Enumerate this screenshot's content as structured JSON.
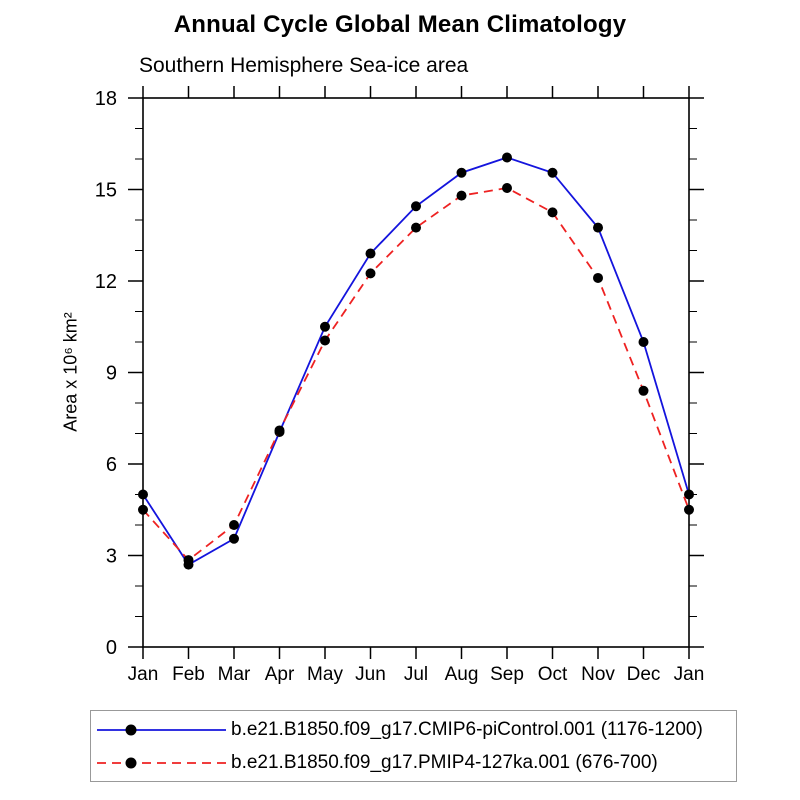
{
  "chart_data": {
    "type": "line",
    "title": "Annual Cycle Global Mean Climatology",
    "subtitle": "Southern Hemisphere Sea-ice area",
    "xlabel": "",
    "ylabel": "Area x 10⁶ km²",
    "categories": [
      "Jan",
      "Feb",
      "Mar",
      "Apr",
      "May",
      "Jun",
      "Jul",
      "Aug",
      "Sep",
      "Oct",
      "Nov",
      "Dec",
      "Jan"
    ],
    "ylim": [
      0,
      18
    ],
    "yticks": [
      0,
      3,
      6,
      9,
      12,
      15,
      18
    ],
    "y_minor_step": 1,
    "grid": false,
    "legend_position": "bottom-left",
    "axis_color": "#000000",
    "series": [
      {
        "name": "b.e21.B1850.f09_g17.CMIP6-piControl.001 (1176-1200)",
        "color": "#1414dd",
        "line_style": "solid",
        "marker": "filled-circle",
        "marker_color": "#000000",
        "values": [
          5.0,
          2.7,
          3.55,
          7.05,
          10.5,
          12.9,
          14.45,
          15.55,
          16.05,
          15.55,
          13.75,
          10.0,
          5.0
        ]
      },
      {
        "name": "b.e21.B1850.f09_g17.PMIP4-127ka.001 (676-700)",
        "color": "#ee2222",
        "line_style": "dashed",
        "marker": "filled-circle",
        "marker_color": "#000000",
        "values": [
          4.5,
          2.85,
          4.0,
          7.1,
          10.05,
          12.25,
          13.75,
          14.8,
          15.05,
          14.25,
          12.1,
          8.4,
          4.5
        ]
      }
    ]
  }
}
